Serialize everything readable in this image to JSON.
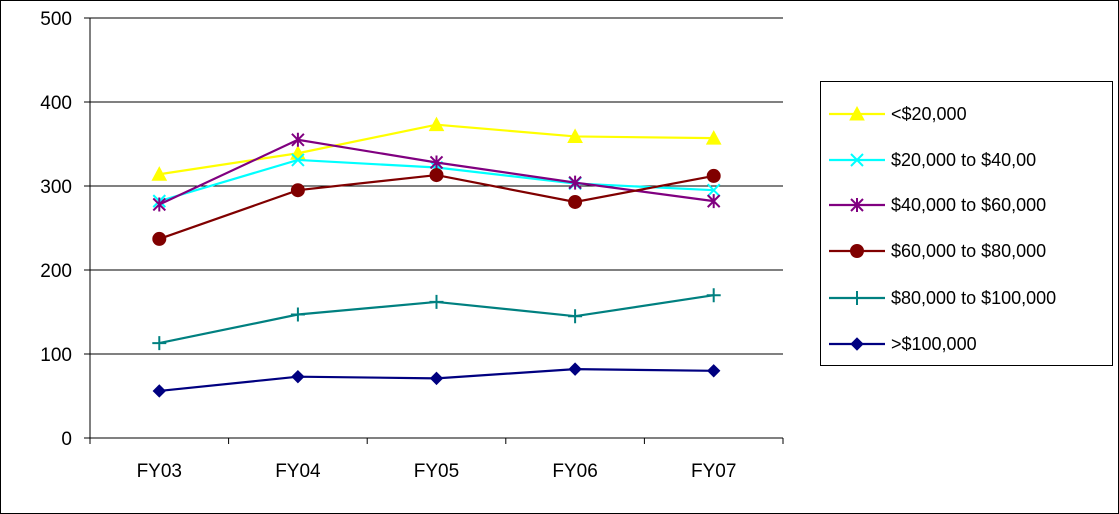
{
  "chart_data": {
    "type": "line",
    "categories": [
      "FY03",
      "FY04",
      "FY05",
      "FY06",
      "FY07"
    ],
    "ylim": [
      0,
      500
    ],
    "yticks": [
      0,
      100,
      200,
      300,
      400,
      500
    ],
    "grid": "horizontal",
    "legend_position": "right",
    "series": [
      {
        "name": "<$20,000",
        "color": "#ffff00",
        "marker": "triangle",
        "values": [
          314,
          339,
          373,
          359,
          357
        ]
      },
      {
        "name": "$20,000 to $40,00",
        "color": "#00ffff",
        "marker": "x",
        "values": [
          282,
          331,
          322,
          303,
          295
        ]
      },
      {
        "name": "$40,000 to $60,000",
        "color": "#800080",
        "marker": "asterisk",
        "values": [
          278,
          355,
          328,
          304,
          282
        ]
      },
      {
        "name": "$60,000 to $80,000",
        "color": "#800000",
        "marker": "circle",
        "values": [
          237,
          295,
          313,
          281,
          312
        ]
      },
      {
        "name": "$80,000 to $100,000",
        "color": "#008080",
        "marker": "plus",
        "values": [
          113,
          147,
          162,
          145,
          170
        ]
      },
      {
        "name": ">$100,000",
        "color": "#000080",
        "marker": "diamond",
        "values": [
          56,
          73,
          71,
          82,
          80
        ]
      }
    ]
  }
}
